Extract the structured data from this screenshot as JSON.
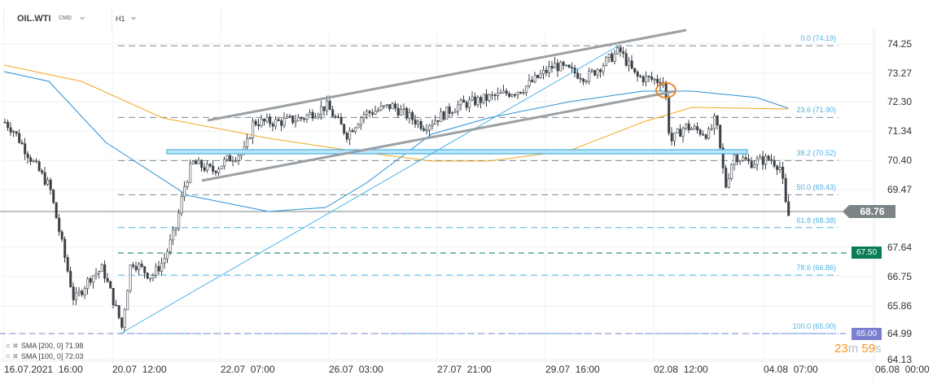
{
  "header": {
    "symbol": "OIL.WTI",
    "symbol_type": "CMD",
    "timeframe": "H1"
  },
  "price_axis": [
    "74.25",
    "73.27",
    "72.30",
    "71.34",
    "70.40",
    "69.47",
    "67.64",
    "66.75",
    "65.86",
    "64.99",
    "64.13"
  ],
  "time_axis": [
    "16.07.2021  16:00",
    "20.07  12:00",
    "22.07  07:00",
    "26.07  03:00",
    "27.07  21:00",
    "29.07  16:00",
    "02.08  12:00",
    "04.08  07:00",
    "06.08  00:00"
  ],
  "fib_levels": [
    "0.0 (74.19)",
    "23.6 (71.90)",
    "38.2 (70.52)",
    "50.0 (69.43)",
    "61.8 (68.38)",
    "78.6 (66.86)",
    "100.0 (65.00)"
  ],
  "badges": {
    "current": "68.76",
    "green_level": "67.50",
    "purple_level": "65.00"
  },
  "timer": {
    "min": "23",
    "min_unit": "m",
    "sec": "59",
    "sec_unit": "s"
  },
  "indicators": [
    {
      "label": "SMA [200,  0] 71.98"
    },
    {
      "label": "SMA [100,  0] 72.03"
    }
  ],
  "colors": {
    "sma_blue": "#2a8fd6",
    "sma_orange": "#f5a623",
    "green": "#0a7d55",
    "purple": "#7b7fd0",
    "fib": "#4bb3e6",
    "timer": "#f7931e"
  },
  "price_path": [
    [
      5,
      71.75
    ],
    [
      15,
      71.5
    ],
    [
      40,
      70.45
    ],
    [
      60,
      69.67
    ],
    [
      75,
      67.85
    ],
    [
      90,
      66.03
    ],
    [
      110,
      66.8
    ],
    [
      125,
      67.07
    ],
    [
      145,
      65.5
    ],
    [
      148,
      65.1
    ],
    [
      160,
      67.33
    ],
    [
      185,
      66.8
    ],
    [
      200,
      67.33
    ],
    [
      215,
      68.37
    ],
    [
      225,
      69.67
    ],
    [
      235,
      70.45
    ],
    [
      260,
      70.2
    ],
    [
      280,
      70.58
    ],
    [
      300,
      70.84
    ],
    [
      310,
      71.75
    ],
    [
      340,
      71.75
    ],
    [
      370,
      71.88
    ],
    [
      400,
      72.27
    ],
    [
      425,
      71.36
    ],
    [
      445,
      72.0
    ],
    [
      480,
      72.27
    ],
    [
      520,
      71.62
    ],
    [
      560,
      72.27
    ],
    [
      600,
      72.53
    ],
    [
      640,
      72.8
    ],
    [
      680,
      73.57
    ],
    [
      720,
      73.18
    ],
    [
      760,
      74.04
    ],
    [
      780,
      73.2
    ],
    [
      815,
      73.05
    ],
    [
      822,
      71.1
    ],
    [
      840,
      71.62
    ],
    [
      870,
      71.36
    ],
    [
      878,
      71.88
    ],
    [
      890,
      69.67
    ],
    [
      900,
      70.71
    ],
    [
      920,
      70.45
    ],
    [
      945,
      70.58
    ],
    [
      958,
      70.3
    ],
    [
      965,
      68.9
    ],
    [
      968,
      68.76
    ]
  ]
}
